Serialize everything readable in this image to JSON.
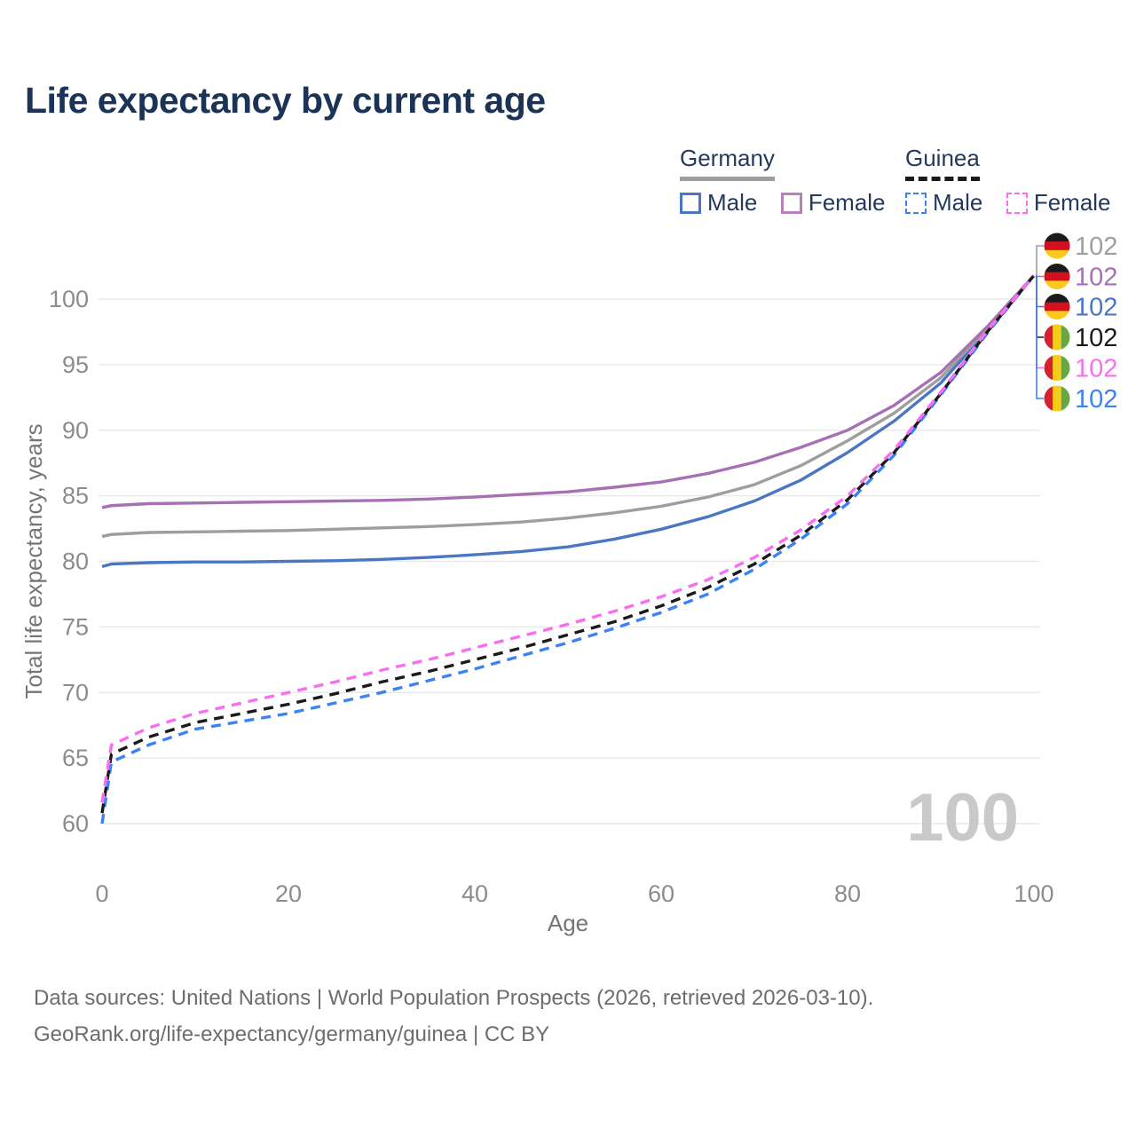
{
  "title": "Life expectancy by current age",
  "watermark": "100",
  "legend": {
    "groups": [
      {
        "name": "Germany",
        "line_style": "solid",
        "underline_color": "#9e9e9e",
        "items": [
          {
            "label": "Male",
            "color": "#4a77c4"
          },
          {
            "label": "Female",
            "color": "#b77fbc"
          }
        ]
      },
      {
        "name": "Guinea",
        "line_style": "dashed",
        "underline_color": "#1a1a1a",
        "items": [
          {
            "label": "Male",
            "color": "#3b82f6"
          },
          {
            "label": "Female",
            "color": "#f96ef0"
          }
        ]
      }
    ]
  },
  "footer": {
    "line1": "Data sources: United Nations | World Population Prospects (2026, retrieved 2026-03-10).",
    "line2": "GeoRank.org/life-expectancy/germany/guinea | CC BY"
  },
  "chart_data": {
    "type": "line",
    "title": "Life expectancy by current age",
    "xlabel": "Age",
    "ylabel": "Total life expectancy, years",
    "xlim": [
      0,
      100
    ],
    "ylim": [
      60,
      102
    ],
    "x_ticks": [
      0,
      20,
      40,
      60,
      80,
      100
    ],
    "y_ticks": [
      60,
      65,
      70,
      75,
      80,
      85,
      90,
      95,
      100
    ],
    "grid": "horizontal",
    "gridline_color": "#e9e9e9",
    "legend_position": "top-right",
    "x": [
      0,
      1,
      5,
      10,
      15,
      20,
      25,
      30,
      35,
      40,
      45,
      50,
      55,
      60,
      65,
      70,
      75,
      80,
      85,
      90,
      95,
      100
    ],
    "series": [
      {
        "name": "Germany — Both sexes",
        "country": "Germany",
        "sex": "Both",
        "flag": "germany",
        "dash": "solid",
        "color": "#9e9e9e",
        "end_label": "102",
        "values": [
          81.9,
          82.05,
          82.2,
          82.25,
          82.3,
          82.35,
          82.45,
          82.55,
          82.65,
          82.8,
          83.0,
          83.3,
          83.7,
          84.2,
          84.9,
          85.85,
          87.3,
          89.2,
          91.3,
          94.0,
          97.75,
          101.8
        ]
      },
      {
        "name": "Germany — Female",
        "country": "Germany",
        "sex": "Female",
        "flag": "germany",
        "dash": "solid",
        "color": "#a76fb4",
        "end_label": "102",
        "values": [
          84.1,
          84.25,
          84.4,
          84.45,
          84.5,
          84.55,
          84.6,
          84.65,
          84.75,
          84.9,
          85.1,
          85.3,
          85.65,
          86.05,
          86.7,
          87.55,
          88.7,
          90.0,
          91.9,
          94.4,
          97.9,
          101.8
        ]
      },
      {
        "name": "Germany — Male",
        "country": "Germany",
        "sex": "Male",
        "flag": "germany",
        "dash": "solid",
        "color": "#4a77c4",
        "end_label": "102",
        "values": [
          79.6,
          79.8,
          79.9,
          79.95,
          79.95,
          80.0,
          80.05,
          80.15,
          80.3,
          80.5,
          80.75,
          81.1,
          81.7,
          82.45,
          83.4,
          84.6,
          86.2,
          88.3,
          90.7,
          93.6,
          97.6,
          101.8
        ]
      },
      {
        "name": "Guinea — Both sexes",
        "country": "Guinea",
        "sex": "Both",
        "flag": "guinea",
        "dash": "dashed",
        "color": "#1a1a1a",
        "end_label": "102",
        "values": [
          60.8,
          65.3,
          66.6,
          67.7,
          68.4,
          69.1,
          69.9,
          70.8,
          71.6,
          72.5,
          73.4,
          74.4,
          75.4,
          76.6,
          78.0,
          79.8,
          82.0,
          84.7,
          88.3,
          92.8,
          97.5,
          101.8
        ]
      },
      {
        "name": "Guinea — Female",
        "country": "Guinea",
        "sex": "Female",
        "flag": "guinea",
        "dash": "dashed",
        "color": "#f96ef0",
        "end_label": "102",
        "values": [
          61.6,
          66.0,
          67.3,
          68.4,
          69.2,
          70.0,
          70.8,
          71.7,
          72.5,
          73.4,
          74.3,
          75.2,
          76.2,
          77.3,
          78.6,
          80.3,
          82.4,
          85.0,
          88.5,
          92.9,
          97.6,
          101.8
        ]
      },
      {
        "name": "Guinea — Male",
        "country": "Guinea",
        "sex": "Male",
        "flag": "guinea",
        "dash": "dashed",
        "color": "#3b82f6",
        "end_label": "102",
        "values": [
          60.0,
          64.7,
          66.0,
          67.2,
          67.8,
          68.4,
          69.2,
          70.0,
          70.9,
          71.8,
          72.8,
          73.8,
          74.9,
          76.1,
          77.5,
          79.4,
          81.7,
          84.4,
          88.1,
          92.7,
          97.4,
          101.8
        ]
      }
    ],
    "flag_colors": {
      "germany": [
        "#1b1b1b",
        "#d50f1e",
        "#fcc81d"
      ],
      "guinea": [
        "#d6212e",
        "#f5cd1b",
        "#6aa744"
      ]
    }
  }
}
